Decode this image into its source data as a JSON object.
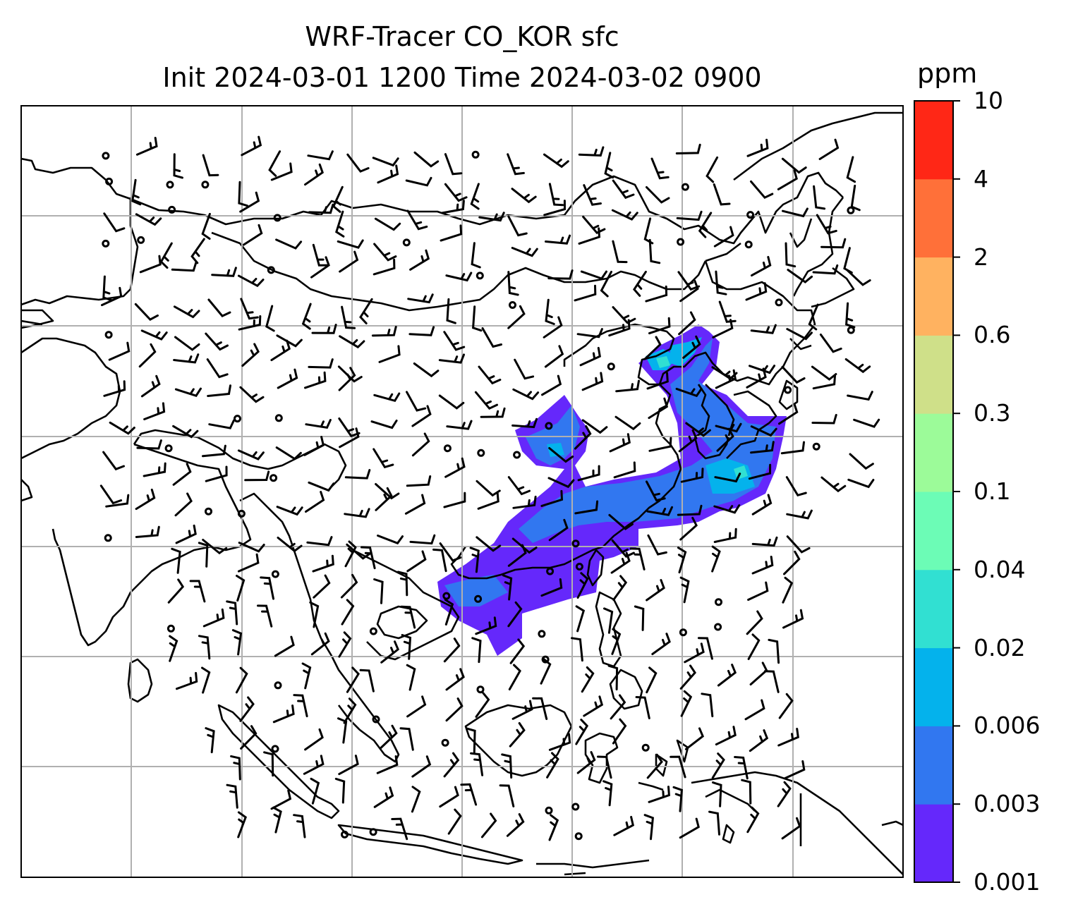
{
  "title": {
    "line1": "WRF-Tracer CO_KOR sfc",
    "line2": "Init 2024-03-01 1200 Time 2024-03-02 0900"
  },
  "colorbar": {
    "unit": "ppm",
    "levels": [
      "0.001",
      "0.003",
      "0.006",
      "0.02",
      "0.04",
      "0.1",
      "0.3",
      "0.6",
      "2",
      "4",
      "10"
    ],
    "colors": [
      "#6528fb",
      "#3177f0",
      "#04b2ec",
      "#31e0d2",
      "#6cfcb6",
      "#9cfb99",
      "#cfe089",
      "#ffb260",
      "#ff7039",
      "#ff2716"
    ]
  },
  "map": {
    "gridlines": true,
    "coastline_color": "#000000",
    "tracer_region": "Korea plume over East China, Yellow Sea, Korea and South China Sea",
    "wind_symbol": "barbs"
  }
}
